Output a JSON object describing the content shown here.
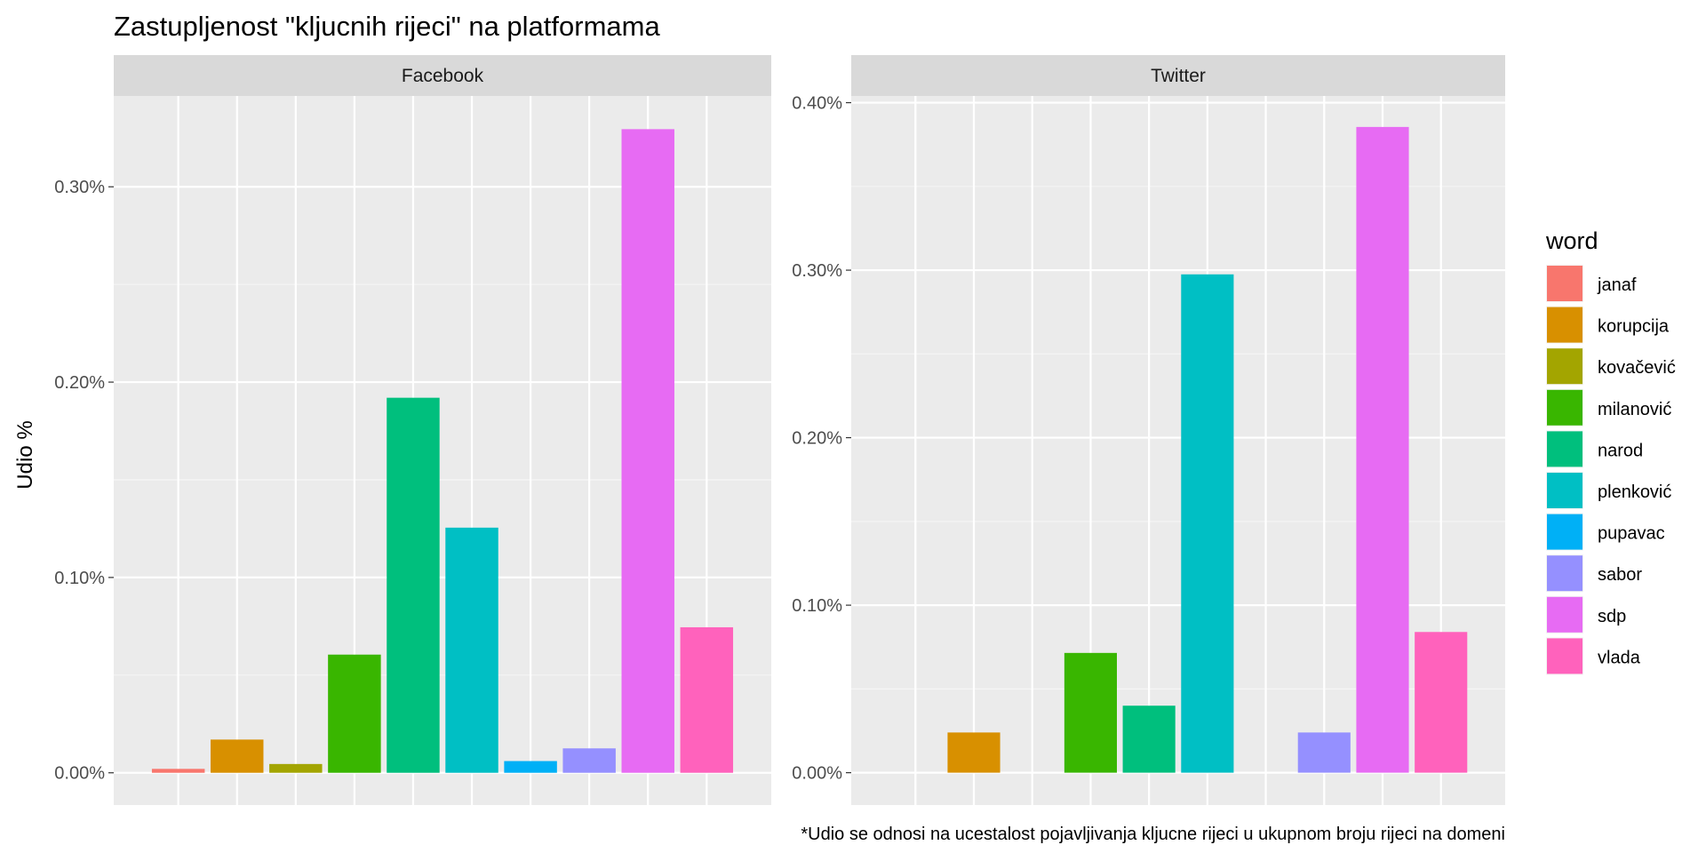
{
  "chart_data": {
    "type": "bar",
    "title": "Zastupljenost \"kljucnih rijeci\" na platformama",
    "ylabel": "Udio %",
    "caption": "*Udio se odnosi na ucestalost pojavljivanja kljucne rijeci u ukupnom broju rijeci na domeni",
    "categories": [
      "janaf",
      "korupcija",
      "kovačević",
      "milanović",
      "narod",
      "plenković",
      "pupavac",
      "sabor",
      "sdp",
      "vlada"
    ],
    "colors": [
      "#F8766D",
      "#D89000",
      "#A3A500",
      "#39B600",
      "#00BF7D",
      "#00BFC4",
      "#00B0F6",
      "#9590FF",
      "#E76BF3",
      "#FF62BC"
    ],
    "legend": {
      "title": "word",
      "position": "right"
    },
    "facets": [
      {
        "name": "Facebook",
        "values": [
          0.002,
          0.017,
          0.0045,
          0.0605,
          0.192,
          0.1255,
          0.006,
          0.0125,
          0.3295,
          0.0745
        ],
        "ylim": [
          -0.0165,
          0.3465
        ],
        "yticks": [
          0.0,
          0.1,
          0.2,
          0.3
        ],
        "yticklabels": [
          "0.00%",
          "0.10%",
          "0.20%",
          "0.30%"
        ]
      },
      {
        "name": "Twitter",
        "values": [
          0.0,
          0.024,
          0.0,
          0.0715,
          0.04,
          0.2975,
          0.0,
          0.024,
          0.3855,
          0.084
        ],
        "ylim": [
          -0.0193,
          0.404
        ],
        "yticks": [
          0.0,
          0.1,
          0.2,
          0.3,
          0.4
        ],
        "yticklabels": [
          "0.00%",
          "0.10%",
          "0.20%",
          "0.30%",
          "0.40%"
        ]
      }
    ],
    "grid": true
  }
}
